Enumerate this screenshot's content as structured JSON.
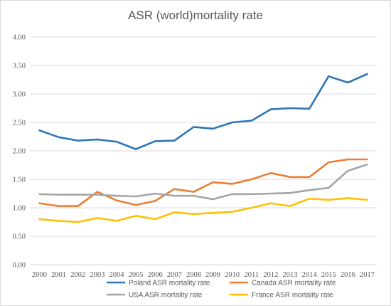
{
  "chart_data": {
    "type": "line",
    "title": "ASR (world)mortality rate",
    "xlabel": "",
    "ylabel": "",
    "ylim": [
      0,
      4
    ],
    "y_ticks": [
      "0.00",
      "0.50",
      "1.00",
      "1.50",
      "2.00",
      "2.50",
      "3.00",
      "3.50",
      "4.00"
    ],
    "categories": [
      "2000",
      "2001",
      "2002",
      "2003",
      "2004",
      "2005",
      "2006",
      "2007",
      "2008",
      "2009",
      "2010",
      "2011",
      "2012",
      "2013",
      "2014",
      "2015",
      "2016",
      "2017"
    ],
    "grid": true,
    "legend_position": "bottom",
    "series": [
      {
        "name": "Poland ASR mortality rate",
        "color": "#2e75b6",
        "values": [
          2.36,
          2.24,
          2.18,
          2.2,
          2.16,
          2.03,
          2.17,
          2.18,
          2.42,
          2.39,
          2.5,
          2.53,
          2.73,
          2.75,
          2.74,
          3.31,
          3.2,
          3.35
        ]
      },
      {
        "name": "Canada ASR mortality rate",
        "color": "#ed7d31",
        "values": [
          1.08,
          1.03,
          1.03,
          1.28,
          1.13,
          1.05,
          1.12,
          1.33,
          1.28,
          1.45,
          1.42,
          1.5,
          1.61,
          1.54,
          1.54,
          1.8,
          1.85,
          1.85
        ]
      },
      {
        "name": "USA ASR mortality  rate",
        "color": "#a5a5a5",
        "values": [
          1.24,
          1.23,
          1.23,
          1.23,
          1.21,
          1.2,
          1.25,
          1.21,
          1.21,
          1.15,
          1.24,
          1.24,
          1.25,
          1.26,
          1.31,
          1.35,
          1.65,
          1.76
        ]
      },
      {
        "name": "France ASR mortality rate",
        "color": "#ffc000",
        "values": [
          0.8,
          0.77,
          0.75,
          0.82,
          0.77,
          0.86,
          0.8,
          0.92,
          0.89,
          0.91,
          0.93,
          1.0,
          1.08,
          1.03,
          1.16,
          1.14,
          1.17,
          1.14
        ]
      }
    ]
  }
}
